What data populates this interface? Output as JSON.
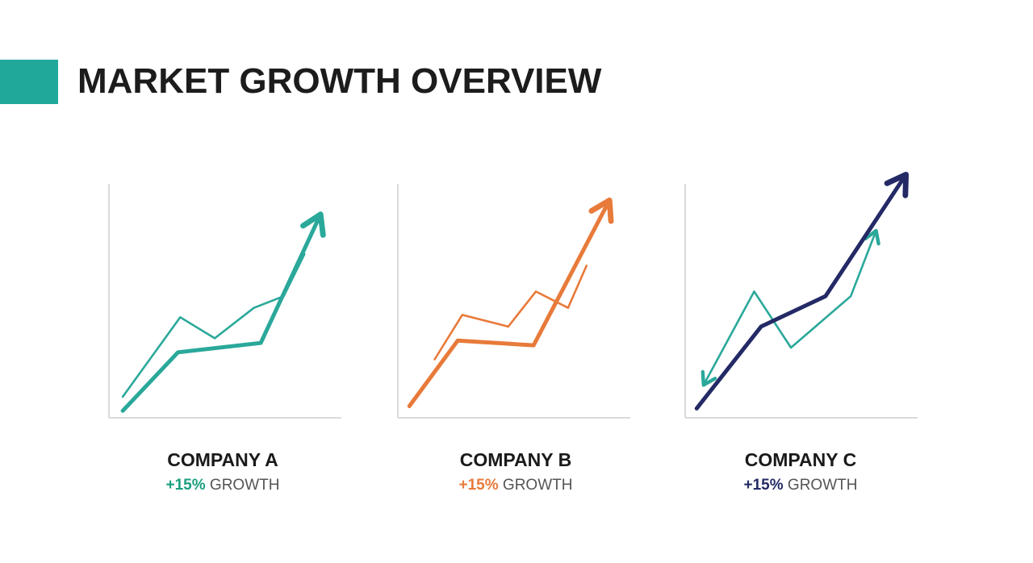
{
  "title": "MARKET GROWTH OVERVIEW",
  "colors": {
    "accent": "#20a99a",
    "teal": "#2aa89a",
    "orange": "#e87a3a",
    "navy": "#242a66",
    "axis": "#cfcfcf"
  },
  "chart_data": [
    {
      "type": "line",
      "title": "COMPANY A",
      "growth_value": "+15%",
      "growth_word": "GROWTH",
      "value_color": "#1a9e7e",
      "xlim": [
        0,
        10
      ],
      "ylim": [
        0,
        10
      ],
      "series": [
        {
          "color": "#2aa89a",
          "weight": "thin",
          "arrow": false,
          "points": [
            [
              0.6,
              0.9
            ],
            [
              3.1,
              4.3
            ],
            [
              4.6,
              3.4
            ],
            [
              6.3,
              4.7
            ],
            [
              7.6,
              5.2
            ],
            [
              8.5,
              7.0
            ]
          ]
        },
        {
          "color": "#2aa89a",
          "weight": "thick",
          "arrow": true,
          "points": [
            [
              0.6,
              0.3
            ],
            [
              3.0,
              2.8
            ],
            [
              6.6,
              3.2
            ],
            [
              9.2,
              8.7
            ]
          ]
        }
      ]
    },
    {
      "type": "line",
      "title": "COMPANY B",
      "growth_value": "+15%",
      "growth_word": "GROWTH",
      "value_color": "#e87a3a",
      "xlim": [
        0,
        10
      ],
      "ylim": [
        0,
        10
      ],
      "series": [
        {
          "color": "#e87a3a",
          "weight": "thin",
          "arrow": false,
          "points": [
            [
              1.6,
              2.5
            ],
            [
              2.8,
              4.4
            ],
            [
              4.8,
              3.9
            ],
            [
              6.0,
              5.4
            ],
            [
              7.4,
              4.7
            ],
            [
              8.2,
              6.5
            ]
          ]
        },
        {
          "color": "#e87a3a",
          "weight": "thick",
          "arrow": true,
          "points": [
            [
              0.5,
              0.5
            ],
            [
              2.6,
              3.3
            ],
            [
              5.9,
              3.1
            ],
            [
              9.2,
              9.3
            ]
          ]
        }
      ]
    },
    {
      "type": "line",
      "title": "COMPANY C",
      "growth_value": "+15%",
      "growth_word": "GROWTH",
      "value_color": "#242a66",
      "xlim": [
        0,
        10
      ],
      "ylim": [
        0,
        10
      ],
      "series": [
        {
          "color": "#2aa89a",
          "weight": "thin",
          "arrow": true,
          "arrow_at_start": true,
          "points": [
            [
              0.8,
              1.4
            ],
            [
              3.0,
              5.4
            ],
            [
              4.6,
              3.0
            ],
            [
              7.2,
              5.2
            ],
            [
              8.3,
              8.0
            ]
          ]
        },
        {
          "color": "#242a66",
          "weight": "thick",
          "arrow": true,
          "points": [
            [
              0.5,
              0.4
            ],
            [
              3.3,
              3.9
            ],
            [
              6.1,
              5.2
            ],
            [
              9.6,
              10.4
            ]
          ]
        }
      ]
    }
  ]
}
